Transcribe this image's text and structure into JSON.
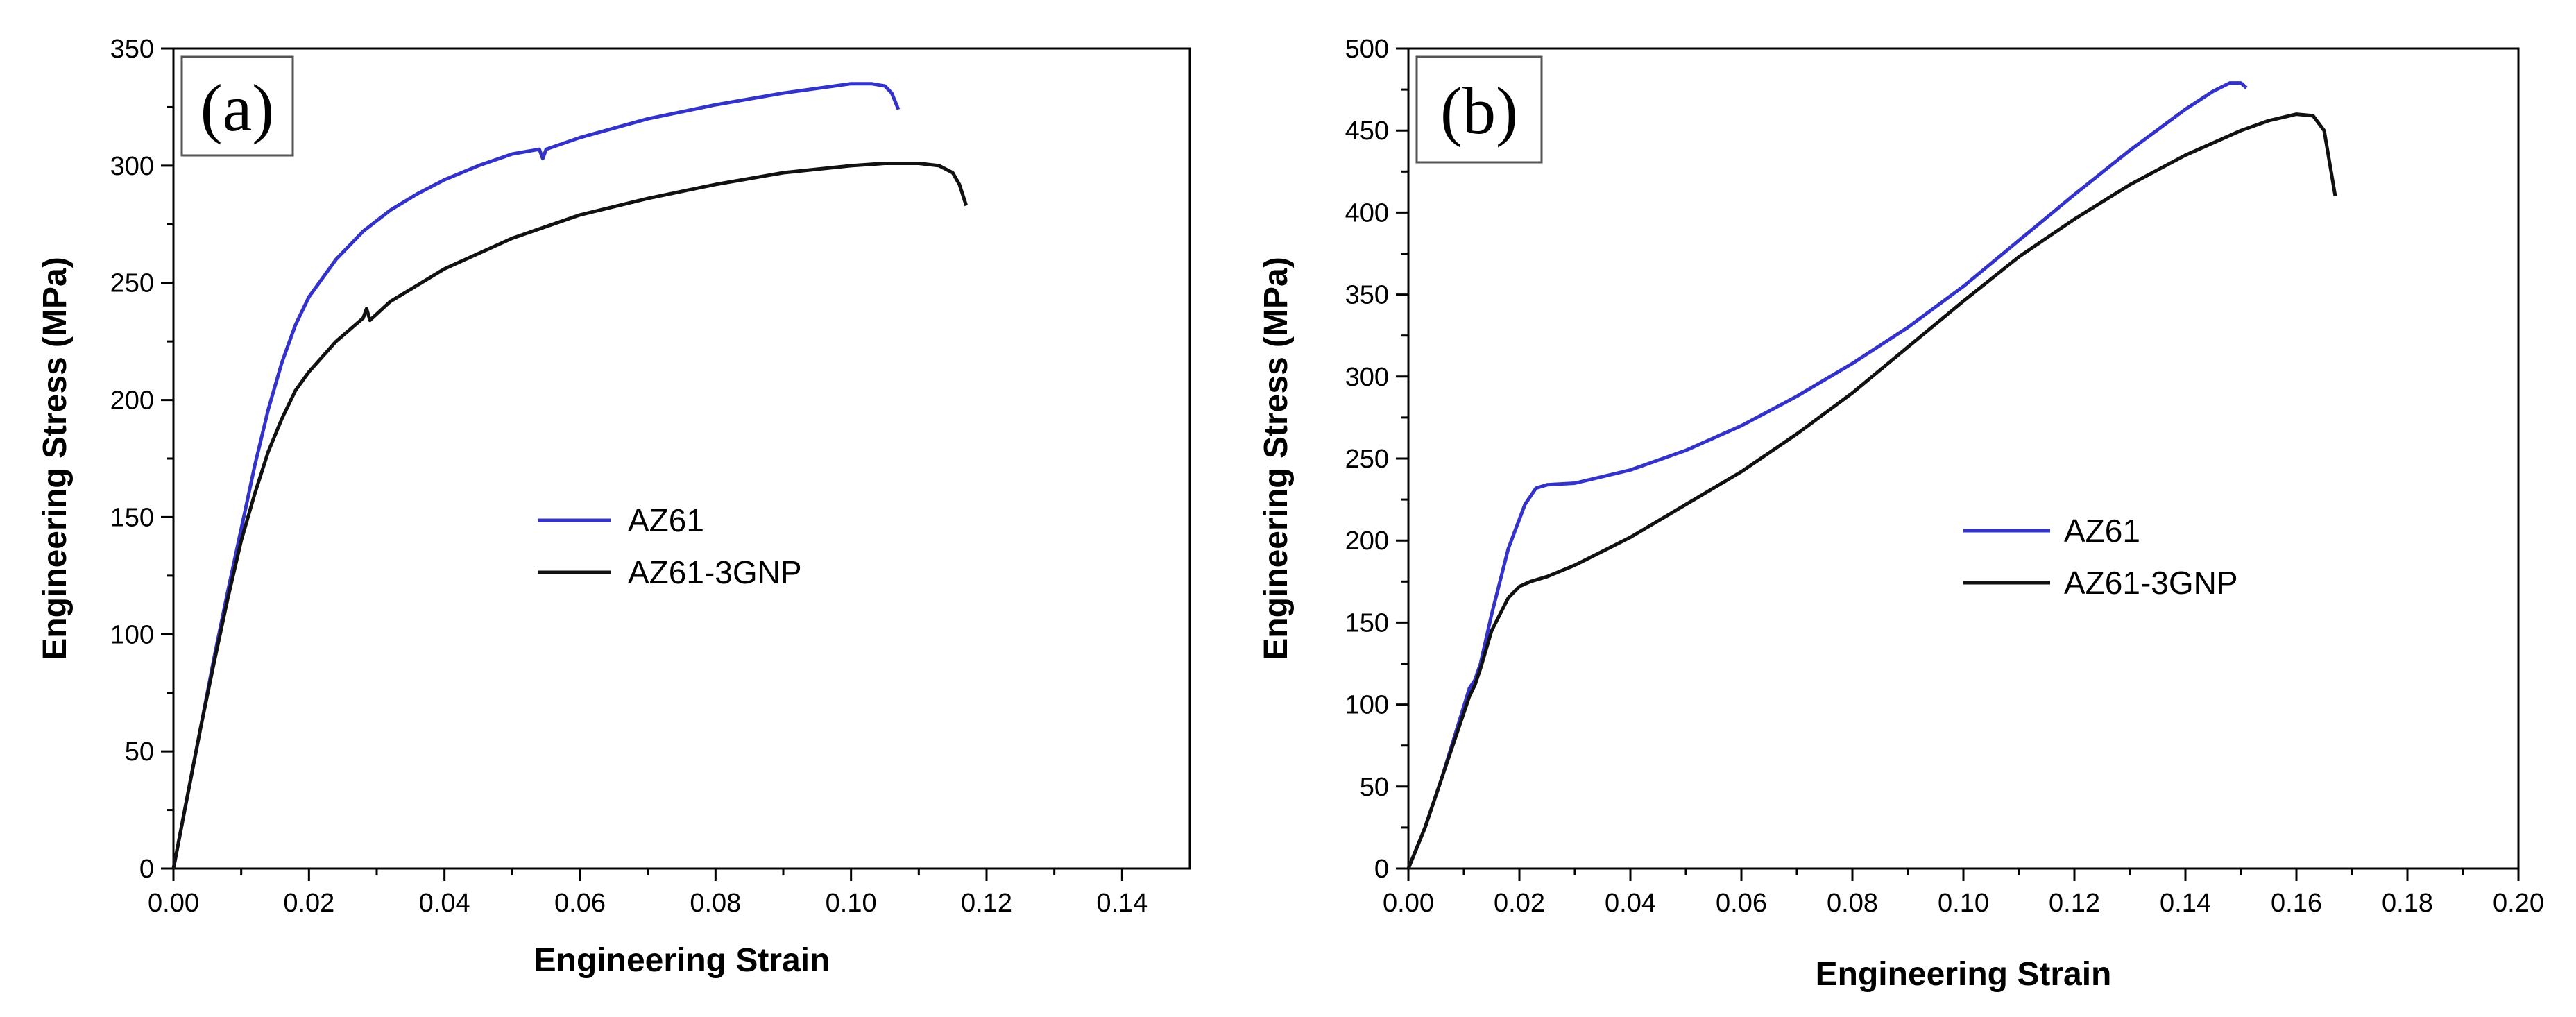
{
  "chart_data": [
    {
      "type": "line",
      "panel_label": "(a)",
      "xlabel": "Engineering Strain",
      "ylabel": "Engineering Stress (MPa)",
      "xlim": [
        0,
        0.15
      ],
      "ylim": [
        0,
        350
      ],
      "xticks": [
        0.0,
        0.02,
        0.04,
        0.06,
        0.08,
        0.1,
        0.12,
        0.14
      ],
      "xtick_labels": [
        "0.00",
        "0.02",
        "0.04",
        "0.06",
        "0.08",
        "0.10",
        "0.12",
        "0.14"
      ],
      "yticks": [
        0,
        50,
        100,
        150,
        200,
        250,
        300,
        350
      ],
      "ytick_labels": [
        "0",
        "50",
        "100",
        "150",
        "200",
        "250",
        "300",
        "350"
      ],
      "legend_position": "center",
      "series": [
        {
          "name": "AZ61",
          "color": "#3333cc",
          "x": [
            0,
            0.002,
            0.004,
            0.006,
            0.008,
            0.01,
            0.012,
            0.014,
            0.016,
            0.018,
            0.02,
            0.024,
            0.028,
            0.032,
            0.036,
            0.04,
            0.045,
            0.05,
            0.054,
            0.0545,
            0.055,
            0.06,
            0.07,
            0.08,
            0.09,
            0.1,
            0.103,
            0.105,
            0.106,
            0.107
          ],
          "y": [
            0,
            30,
            60,
            90,
            118,
            145,
            172,
            196,
            216,
            232,
            244,
            260,
            272,
            281,
            288,
            294,
            300,
            305,
            307,
            303,
            307,
            312,
            320,
            326,
            331,
            335,
            335,
            334,
            331,
            324
          ]
        },
        {
          "name": "AZ61-3GNP",
          "color": "#111111",
          "x": [
            0,
            0.002,
            0.004,
            0.006,
            0.008,
            0.01,
            0.012,
            0.014,
            0.016,
            0.018,
            0.02,
            0.024,
            0.028,
            0.0285,
            0.029,
            0.032,
            0.036,
            0.04,
            0.05,
            0.06,
            0.07,
            0.08,
            0.09,
            0.1,
            0.105,
            0.11,
            0.113,
            0.115,
            0.116,
            0.117
          ],
          "y": [
            0,
            30,
            60,
            88,
            115,
            140,
            160,
            178,
            192,
            204,
            212,
            225,
            235,
            239,
            234,
            242,
            249,
            256,
            269,
            279,
            286,
            292,
            297,
            300,
            301,
            301,
            300,
            297,
            292,
            283
          ]
        }
      ]
    },
    {
      "type": "line",
      "panel_label": "(b)",
      "xlabel": "Engineering Strain",
      "ylabel": "Engineering Stress (MPa)",
      "xlim": [
        0,
        0.2
      ],
      "ylim": [
        0,
        500
      ],
      "xticks": [
        0.0,
        0.02,
        0.04,
        0.06,
        0.08,
        0.1,
        0.12,
        0.14,
        0.16,
        0.18,
        0.2
      ],
      "xtick_labels": [
        "0.00",
        "0.02",
        "0.04",
        "0.06",
        "0.08",
        "0.10",
        "0.12",
        "0.14",
        "0.16",
        "0.18",
        "0.20"
      ],
      "yticks": [
        0,
        50,
        100,
        150,
        200,
        250,
        300,
        350,
        400,
        450,
        500
      ],
      "ytick_labels": [
        "0",
        "50",
        "100",
        "150",
        "200",
        "250",
        "300",
        "350",
        "400",
        "450",
        "500"
      ],
      "legend_position": "center-right",
      "series": [
        {
          "name": "AZ61",
          "color": "#3333cc",
          "x": [
            0,
            0.003,
            0.006,
            0.009,
            0.011,
            0.012,
            0.013,
            0.015,
            0.018,
            0.021,
            0.023,
            0.025,
            0.03,
            0.04,
            0.05,
            0.06,
            0.07,
            0.08,
            0.09,
            0.1,
            0.11,
            0.12,
            0.13,
            0.14,
            0.145,
            0.148,
            0.15,
            0.151
          ],
          "y": [
            0,
            25,
            55,
            88,
            110,
            115,
            125,
            155,
            195,
            222,
            232,
            234,
            235,
            243,
            255,
            270,
            288,
            308,
            330,
            355,
            383,
            411,
            438,
            463,
            474,
            479,
            479,
            476
          ]
        },
        {
          "name": "AZ61-3GNP",
          "color": "#111111",
          "x": [
            0,
            0.003,
            0.006,
            0.009,
            0.011,
            0.012,
            0.013,
            0.015,
            0.018,
            0.02,
            0.022,
            0.025,
            0.03,
            0.04,
            0.05,
            0.06,
            0.07,
            0.08,
            0.09,
            0.1,
            0.11,
            0.12,
            0.13,
            0.14,
            0.15,
            0.155,
            0.16,
            0.163,
            0.165,
            0.166,
            0.167
          ],
          "y": [
            0,
            25,
            55,
            85,
            105,
            112,
            122,
            145,
            165,
            172,
            175,
            178,
            185,
            202,
            222,
            242,
            265,
            290,
            318,
            346,
            373,
            396,
            417,
            435,
            450,
            456,
            460,
            459,
            450,
            430,
            410
          ]
        }
      ]
    }
  ]
}
